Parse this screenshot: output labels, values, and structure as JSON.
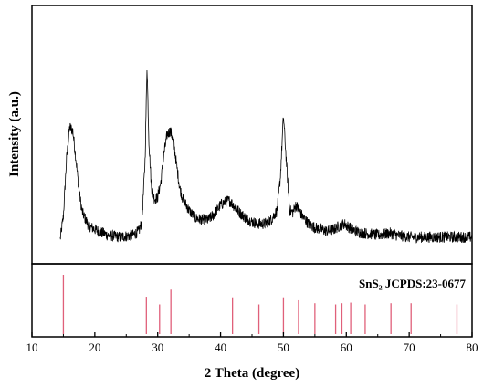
{
  "chart_data": [
    {
      "type": "line",
      "panel": "top",
      "ylabel": "Intensity (a.u.)",
      "y_tick_labels": "none",
      "xlim": [
        10,
        80
      ],
      "ylim": [
        0,
        1
      ],
      "grid": false,
      "series": [
        {
          "x": [
            14.5,
            15.0,
            15.5,
            16.0,
            16.5,
            17.0,
            17.5,
            18.0,
            19.0,
            20.0,
            22.0,
            24.0,
            26.0,
            27.0,
            27.5,
            28.0,
            28.3,
            28.6,
            29.0,
            29.5,
            30.0,
            30.5,
            31.0,
            31.5,
            32.0,
            32.5,
            33.0,
            33.5,
            34.0,
            35.0,
            36.0,
            37.0,
            38.0,
            39.0,
            40.0,
            41.0,
            41.5,
            42.0,
            43.0,
            44.0,
            45.0,
            46.0,
            47.0,
            48.0,
            49.0,
            49.5,
            50.0,
            50.5,
            51.0,
            51.5,
            52.0,
            52.5,
            53.0,
            54.0,
            55.0,
            56.0,
            57.0,
            58.0,
            59.0,
            59.7,
            60.5,
            61.5,
            63.0,
            65.0,
            67.0,
            68.0,
            70.0,
            72.0,
            75.0,
            78.0,
            80.0
          ],
          "y": [
            0.03,
            0.15,
            0.45,
            0.62,
            0.6,
            0.45,
            0.28,
            0.17,
            0.1,
            0.08,
            0.05,
            0.04,
            0.05,
            0.07,
            0.12,
            0.45,
            0.95,
            0.55,
            0.3,
            0.24,
            0.25,
            0.33,
            0.48,
            0.58,
            0.6,
            0.55,
            0.42,
            0.3,
            0.24,
            0.18,
            0.14,
            0.13,
            0.13,
            0.16,
            0.21,
            0.23,
            0.23,
            0.21,
            0.17,
            0.14,
            0.12,
            0.11,
            0.11,
            0.13,
            0.18,
            0.35,
            0.68,
            0.42,
            0.18,
            0.17,
            0.21,
            0.18,
            0.15,
            0.11,
            0.09,
            0.08,
            0.07,
            0.08,
            0.1,
            0.11,
            0.09,
            0.07,
            0.06,
            0.05,
            0.06,
            0.05,
            0.04,
            0.04,
            0.04,
            0.04,
            0.04
          ]
        }
      ]
    },
    {
      "type": "bar",
      "panel": "bottom",
      "title": "SnS₂ JCPDS:23-0677",
      "xlabel": "2 Theta (degree)",
      "xlim": [
        10,
        80
      ],
      "ylim": [
        0,
        1
      ],
      "x_ticks": [
        10,
        20,
        30,
        40,
        50,
        60,
        70,
        80
      ],
      "color": "#e0607a",
      "lines": [
        {
          "x": 15.0,
          "value": 1.0
        },
        {
          "x": 28.2,
          "value": 0.63
        },
        {
          "x": 30.3,
          "value": 0.5
        },
        {
          "x": 32.1,
          "value": 0.75
        },
        {
          "x": 41.9,
          "value": 0.62
        },
        {
          "x": 46.1,
          "value": 0.5
        },
        {
          "x": 50.0,
          "value": 0.62
        },
        {
          "x": 52.4,
          "value": 0.57
        },
        {
          "x": 55.0,
          "value": 0.52
        },
        {
          "x": 58.3,
          "value": 0.5
        },
        {
          "x": 59.3,
          "value": 0.52
        },
        {
          "x": 60.7,
          "value": 0.53
        },
        {
          "x": 63.0,
          "value": 0.5
        },
        {
          "x": 67.1,
          "value": 0.52
        },
        {
          "x": 70.3,
          "value": 0.52
        },
        {
          "x": 77.6,
          "value": 0.5
        }
      ]
    }
  ]
}
